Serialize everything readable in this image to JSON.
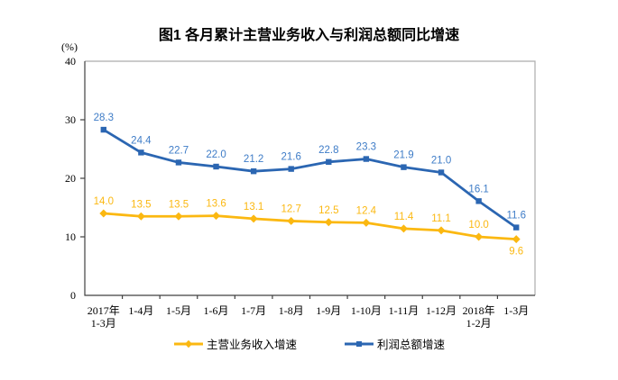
{
  "chart_data": {
    "type": "line",
    "title": "图1  各月累计主营业务收入与利润总额同比增速",
    "ylabel": "(%)",
    "xlabel": "",
    "ylim": [
      0,
      40
    ],
    "yticks": [
      0,
      10,
      20,
      30,
      40
    ],
    "grid": false,
    "legend_position": "bottom",
    "frame_color": "#ACACAC",
    "axis_color": "#404040",
    "categories": [
      [
        "2017年",
        "1-3月"
      ],
      [
        "1-4月"
      ],
      [
        "1-5月"
      ],
      [
        "1-6月"
      ],
      [
        "1-7月"
      ],
      [
        "1-8月"
      ],
      [
        "1-9月"
      ],
      [
        "1-10月"
      ],
      [
        "1-11月"
      ],
      [
        "1-12月"
      ],
      [
        "2018年",
        "1-2月"
      ],
      [
        "1-3月"
      ]
    ],
    "series": [
      {
        "name": "主营业务收入增速",
        "marker": "diamond",
        "color": "#FBB811",
        "label_color": "#FBB811",
        "values": [
          14.0,
          13.5,
          13.5,
          13.6,
          13.1,
          12.7,
          12.5,
          12.4,
          11.4,
          11.1,
          10.0,
          9.6
        ],
        "label_overrides": {
          "11": "below"
        }
      },
      {
        "name": "利润总额增速",
        "marker": "square",
        "color": "#2B66B2",
        "label_color": "#3E7CC7",
        "values": [
          28.3,
          24.4,
          22.7,
          22.0,
          21.2,
          21.6,
          22.8,
          23.3,
          21.9,
          21.0,
          16.1,
          11.6
        ],
        "label_overrides": {}
      }
    ]
  }
}
